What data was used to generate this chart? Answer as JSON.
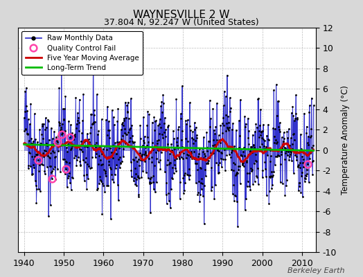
{
  "title": "WAYNESVILLE 2 W",
  "subtitle": "37.804 N, 92.247 W (United States)",
  "ylabel": "Temperature Anomaly (°C)",
  "watermark": "Berkeley Earth",
  "xlim": [
    1938.5,
    2013.5
  ],
  "ylim": [
    -10,
    12
  ],
  "yticks": [
    -10,
    -8,
    -6,
    -4,
    -2,
    0,
    2,
    4,
    6,
    8,
    10,
    12
  ],
  "xticks": [
    1940,
    1950,
    1960,
    1970,
    1980,
    1990,
    2000,
    2010
  ],
  "background_color": "#d8d8d8",
  "plot_bg_color": "#ffffff",
  "grid_color": "#a0a0a0",
  "line_color": "#3333cc",
  "ma_color": "#cc0000",
  "trend_color": "#00bb00",
  "qc_color": "#ff44aa",
  "seed": 42,
  "start_year": 1940,
  "end_year": 2012,
  "noise_scale": 2.2,
  "qc_years": [
    1943.5,
    1947.0,
    1948.5,
    1949.5,
    1950.5,
    1951.5,
    2011.5
  ]
}
